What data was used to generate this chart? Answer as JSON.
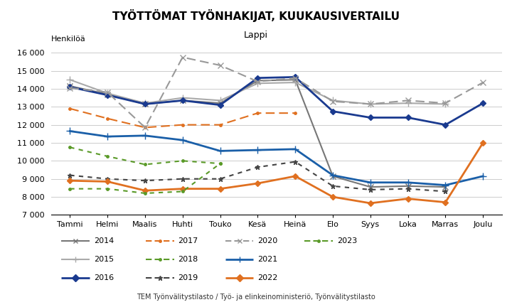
{
  "title": "TYÖTTÖMAT TYÖNHAKIJAT, KUUKAUSIVERTAILU",
  "subtitle": "Lappi",
  "ylabel": "Henkilöä",
  "footer": "TEM Työnvälitystilasto / Työ- ja elinkeinoministeriö, Työnvälitystilasto",
  "months": [
    "Tammi",
    "Helmi",
    "Maalis",
    "Huhti",
    "Touko",
    "Kesä",
    "Heinä",
    "Elo",
    "Syys",
    "Loka",
    "Marras",
    "Joulu"
  ],
  "ylim": [
    7000,
    16200
  ],
  "yticks": [
    7000,
    8000,
    9000,
    10000,
    11000,
    12000,
    13000,
    14000,
    15000,
    16000
  ],
  "ytick_labels": [
    "7 000",
    "8 000",
    "9 000",
    "10 000",
    "11 000",
    "12 000",
    "13 000",
    "14 000",
    "15 000",
    "16 000"
  ],
  "series": {
    "2014": {
      "values": [
        14150,
        13700,
        13150,
        13350,
        13200,
        14450,
        14500,
        9150,
        8550,
        8600,
        8550,
        null
      ],
      "color": "#777777",
      "linestyle": "solid",
      "marker": "x",
      "ms": 6,
      "lw": 1.5,
      "dashes": null
    },
    "2015": {
      "values": [
        14500,
        13750,
        13200,
        13500,
        13350,
        14300,
        14350,
        13350,
        13150,
        13200,
        13150,
        null
      ],
      "color": "#aaaaaa",
      "linestyle": "solid",
      "marker": "+",
      "ms": 7,
      "lw": 1.5,
      "dashes": null
    },
    "2016": {
      "values": [
        14100,
        13650,
        13150,
        13350,
        13100,
        14600,
        14650,
        12750,
        12400,
        12400,
        12000,
        13200
      ],
      "color": "#1a3a8f",
      "linestyle": "solid",
      "marker": "D",
      "ms": 4,
      "lw": 2.0,
      "dashes": null
    },
    "2017": {
      "values": [
        12900,
        12350,
        11850,
        12000,
        12000,
        12650,
        12650,
        null,
        null,
        null,
        null,
        null
      ],
      "color": "#e07020",
      "linestyle": "dashed",
      "marker": ".",
      "ms": 5,
      "lw": 1.5,
      "dashes": [
        6,
        3
      ]
    },
    "2018": {
      "values": [
        10750,
        10250,
        9800,
        10000,
        9850,
        null,
        null,
        null,
        null,
        null,
        null,
        null
      ],
      "color": "#5a9a28",
      "linestyle": "dashed",
      "marker": ".",
      "ms": 5,
      "lw": 1.5,
      "dashes": [
        3,
        3
      ]
    },
    "2019": {
      "values": [
        9200,
        9000,
        8900,
        9000,
        9000,
        9650,
        9950,
        8600,
        8400,
        8450,
        8300,
        null
      ],
      "color": "#444444",
      "linestyle": "dashed",
      "marker": "*",
      "ms": 5,
      "lw": 1.5,
      "dashes": [
        3,
        3
      ]
    },
    "2020": {
      "values": [
        14050,
        13800,
        11850,
        15750,
        15300,
        14400,
        14600,
        13300,
        13150,
        13350,
        13200,
        14350
      ],
      "color": "#999999",
      "linestyle": "dashed",
      "marker": "x",
      "ms": 6,
      "lw": 1.5,
      "dashes": [
        6,
        3
      ]
    },
    "2021": {
      "values": [
        11650,
        11350,
        11400,
        11150,
        10550,
        10600,
        10650,
        9200,
        8800,
        8800,
        8650,
        9150
      ],
      "color": "#1a5fa8",
      "linestyle": "solid",
      "marker": "+",
      "ms": 7,
      "lw": 2.0,
      "dashes": null
    },
    "2022": {
      "values": [
        8900,
        8850,
        8350,
        8450,
        8450,
        8750,
        9150,
        8000,
        7650,
        7900,
        7700,
        11000
      ],
      "color": "#e07020",
      "linestyle": "solid",
      "marker": "D",
      "ms": 4,
      "lw": 2.0,
      "dashes": null
    },
    "2023": {
      "values": [
        8450,
        8450,
        8200,
        8300,
        9850,
        null,
        null,
        null,
        null,
        null,
        null,
        null
      ],
      "color": "#5a9a28",
      "linestyle": "dashed",
      "marker": ".",
      "ms": 5,
      "lw": 1.5,
      "dashes": [
        3,
        3
      ]
    }
  },
  "legend_rows": [
    [
      [
        "2014",
        "#777777",
        "solid",
        "x"
      ],
      [
        "2017",
        "#e07020",
        "dashed",
        "."
      ],
      [
        "2020",
        "#999999",
        "dashed",
        "x"
      ],
      [
        "2023",
        "#5a9a28",
        "dashed",
        "."
      ]
    ],
    [
      [
        "2015",
        "#aaaaaa",
        "solid",
        "+"
      ],
      [
        "2018",
        "#5a9a28",
        "dashed",
        "."
      ],
      [
        "2021",
        "#1a5fa8",
        "solid",
        "+"
      ],
      null
    ],
    [
      [
        "2016",
        "#1a3a8f",
        "solid",
        "D"
      ],
      [
        "2019",
        "#444444",
        "dashed",
        "*"
      ],
      [
        "2022",
        "#e07020",
        "solid",
        "D"
      ],
      null
    ]
  ]
}
